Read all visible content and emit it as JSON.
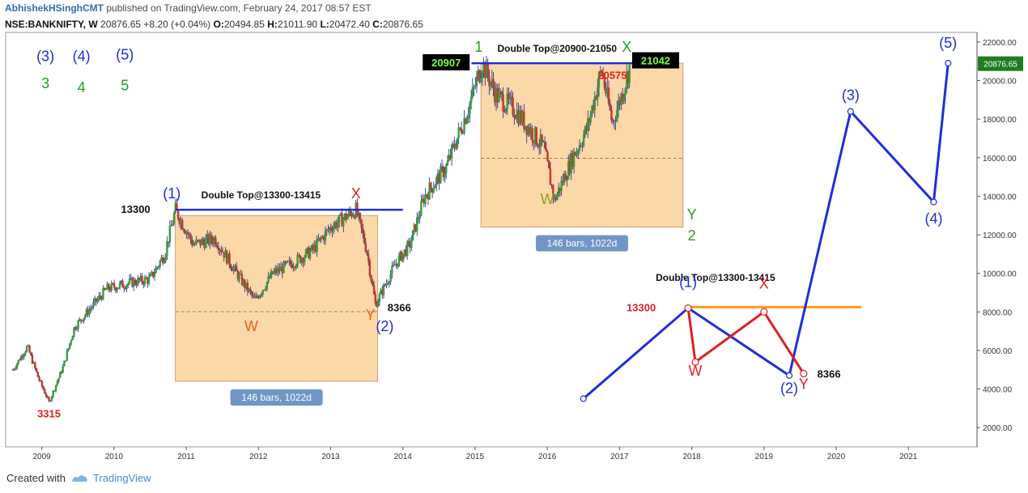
{
  "header": {
    "user": "AbhishekHSinghCMT",
    "published": "published on TradingView.com, February 24, 2017 08:57 EST",
    "symbol": "NSE:BANKNIFTY, W",
    "last": "20876.65",
    "change": "+8.20 (+0.04%)",
    "o_label": "O:",
    "o": "20494.85",
    "h_label": "H:",
    "h": "21011.90",
    "l_label": "L:",
    "l": "20472.40",
    "c_label": "C:",
    "c": "20876.65"
  },
  "footer": {
    "created": "Created with",
    "brand": "TradingView"
  },
  "colors": {
    "up": "#3a9d3a",
    "down": "#c0392b",
    "wick": "#1a237e",
    "box": "#fcd8a8",
    "blue": "#1f2fd6",
    "red": "#e02020",
    "green": "#1f9f1f",
    "orange": "#ff9c1a",
    "badge": "#6f96c4"
  },
  "chart_data": {
    "type": "line",
    "title": "",
    "ylim": [
      1000,
      22500
    ],
    "y_ticks": [
      "22000.00",
      "20000.00",
      "18000.00",
      "16000.00",
      "14000.00",
      "12000.00",
      "10000.00",
      "8000.00",
      "6000.00",
      "4000.00",
      "2000.00"
    ],
    "x_ticks": [
      "2009",
      "2010",
      "2011",
      "2012",
      "2013",
      "2014",
      "2015",
      "2016",
      "2017",
      "2018",
      "2019",
      "2020",
      "2021"
    ],
    "last_price_label": "20876.65",
    "price_path": [
      [
        2008.6,
        5000
      ],
      [
        2008.8,
        6200
      ],
      [
        2008.95,
        4600
      ],
      [
        2009.1,
        3315
      ],
      [
        2009.3,
        5200
      ],
      [
        2009.45,
        7200
      ],
      [
        2009.7,
        8300
      ],
      [
        2009.9,
        9200
      ],
      [
        2010.2,
        9500
      ],
      [
        2010.5,
        9700
      ],
      [
        2010.7,
        11000
      ],
      [
        2010.85,
        13300
      ],
      [
        2011.1,
        11500
      ],
      [
        2011.4,
        11800
      ],
      [
        2011.7,
        10000
      ],
      [
        2011.95,
        8600
      ],
      [
        2012.2,
        10000
      ],
      [
        2012.5,
        10600
      ],
      [
        2012.75,
        11200
      ],
      [
        2013.0,
        12400
      ],
      [
        2013.35,
        13300
      ],
      [
        2013.5,
        11200
      ],
      [
        2013.62,
        8366
      ],
      [
        2013.9,
        10500
      ],
      [
        2014.1,
        11500
      ],
      [
        2014.3,
        14000
      ],
      [
        2014.6,
        15500
      ],
      [
        2014.9,
        18500
      ],
      [
        2015.1,
        20907
      ],
      [
        2015.3,
        19200
      ],
      [
        2015.55,
        18500
      ],
      [
        2015.75,
        17500
      ],
      [
        2015.95,
        16500
      ],
      [
        2016.1,
        13800
      ],
      [
        2016.35,
        16000
      ],
      [
        2016.55,
        17500
      ],
      [
        2016.75,
        20575
      ],
      [
        2016.9,
        17800
      ],
      [
        2017.05,
        19500
      ],
      [
        2017.15,
        20876.65
      ]
    ],
    "boxes": [
      {
        "label": "146 bars, 1022d",
        "x": [
          2010.85,
          2013.65
        ],
        "y": [
          4400,
          13000
        ]
      },
      {
        "label": "146 bars, 1022d",
        "x": [
          2015.08,
          2017.88
        ],
        "y": [
          12400,
          20900
        ]
      }
    ],
    "double_tops": [
      {
        "label": "Double Top@13300-13415",
        "x": [
          2010.85,
          2014.0
        ],
        "y": 13300
      },
      {
        "label": "Double Top@20900-21050",
        "x": [
          2014.95,
          2017.45
        ],
        "y": 20900
      }
    ],
    "projection": {
      "pattern_label": "Double Top@13300-13415",
      "blue_points": [
        [
          2016.5,
          3500
        ],
        [
          2017.95,
          8200
        ],
        [
          2019.35,
          4700
        ],
        [
          2020.2,
          18400
        ],
        [
          2021.35,
          13700
        ],
        [
          2021.55,
          20900
        ]
      ],
      "red_points": [
        [
          2017.95,
          8200
        ],
        [
          2018.05,
          5400
        ],
        [
          2019.0,
          8000
        ],
        [
          2019.55,
          4800
        ]
      ],
      "orange_line": [
        [
          2017.95,
          8250
        ],
        [
          2020.35,
          8250
        ]
      ]
    },
    "annotations": [
      {
        "text": "(3)",
        "x": 2009.05,
        "y": 21000,
        "color": "blue"
      },
      {
        "text": "(4)",
        "x": 2009.55,
        "y": 21000,
        "color": "blue"
      },
      {
        "text": "(5)",
        "x": 2010.15,
        "y": 21100,
        "color": "blue"
      },
      {
        "text": "3",
        "x": 2009.05,
        "y": 19600,
        "color": "green"
      },
      {
        "text": "4",
        "x": 2009.55,
        "y": 19400,
        "color": "green"
      },
      {
        "text": "5",
        "x": 2010.15,
        "y": 19500,
        "color": "green"
      },
      {
        "text": "(1)",
        "x": 2010.8,
        "y": 13900,
        "color": "blue"
      },
      {
        "text": "X",
        "x": 2013.35,
        "y": 13900,
        "color": "red"
      },
      {
        "text": "W",
        "x": 2011.9,
        "y": 7000,
        "color": "orange"
      },
      {
        "text": "Y",
        "x": 2013.55,
        "y": 7600,
        "color": "orange"
      },
      {
        "text": "(2)",
        "x": 2013.75,
        "y": 7000,
        "color": "blue"
      },
      {
        "text": "1",
        "x": 2015.05,
        "y": 21500,
        "color": "green"
      },
      {
        "text": "X",
        "x": 2017.1,
        "y": 21500,
        "color": "green"
      },
      {
        "text": "W",
        "x": 2016.0,
        "y": 13600,
        "color": "olive"
      },
      {
        "text": "Y",
        "x": 2018.0,
        "y": 12800,
        "color": "green"
      },
      {
        "text": "2",
        "x": 2018.0,
        "y": 11700,
        "color": "green"
      },
      {
        "text": "(1)",
        "x": 2017.95,
        "y": 9300,
        "color": "blue"
      },
      {
        "text": "X",
        "x": 2019.0,
        "y": 9200,
        "color": "red"
      },
      {
        "text": "W",
        "x": 2018.05,
        "y": 4700,
        "color": "red"
      },
      {
        "text": "(2)",
        "x": 2019.35,
        "y": 3800,
        "color": "blue"
      },
      {
        "text": "Y",
        "x": 2019.55,
        "y": 4000,
        "color": "red"
      },
      {
        "text": "(3)",
        "x": 2020.2,
        "y": 19000,
        "color": "blue"
      },
      {
        "text": "(4)",
        "x": 2021.35,
        "y": 12600,
        "color": "blue"
      },
      {
        "text": "(5)",
        "x": 2021.55,
        "y": 21700,
        "color": "blue"
      }
    ],
    "price_labels": [
      {
        "text": "13300",
        "x": 2010.3,
        "y": 13300,
        "color": "black"
      },
      {
        "text": "8366",
        "x": 2013.95,
        "y": 8200,
        "color": "black"
      },
      {
        "text": "3315",
        "x": 2009.1,
        "y": 2700,
        "color": "red"
      },
      {
        "text": "20907",
        "x": 2014.6,
        "y": 20950,
        "color": "badge"
      },
      {
        "text": "21042",
        "x": 2017.5,
        "y": 21050,
        "color": "badge"
      },
      {
        "text": "20575",
        "x": 2016.9,
        "y": 20250,
        "color": "red"
      },
      {
        "text": "13300",
        "x": 2017.3,
        "y": 8200,
        "color": "red"
      },
      {
        "text": "8366",
        "x": 2019.9,
        "y": 4750,
        "color": "black"
      }
    ]
  }
}
